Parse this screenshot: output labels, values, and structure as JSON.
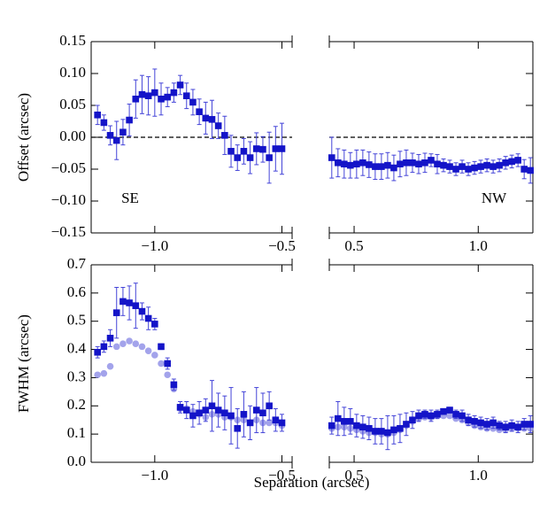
{
  "chart_data": [
    {
      "type": "errorbar",
      "ylabel": "Offset (arcsec)",
      "annotation": "SE",
      "hline": 0,
      "spines": [
        "left",
        "top",
        "bottom"
      ],
      "ytick_labels": true,
      "xlim": [
        -1.25,
        -0.46
      ],
      "ylim": [
        -0.15,
        0.15
      ],
      "xticks": [
        {
          "value": -1.0,
          "label": "−1.0"
        },
        {
          "value": -0.5,
          "label": "−0.5"
        }
      ],
      "yticks": [
        {
          "value": -0.15,
          "label": "−0.15"
        },
        {
          "value": -0.1,
          "label": "−0.10"
        },
        {
          "value": -0.05,
          "label": "−0.05"
        },
        {
          "value": 0,
          "label": "0.00"
        },
        {
          "value": 0.05,
          "label": "0.05"
        },
        {
          "value": 0.1,
          "label": "0.10"
        },
        {
          "value": 0.15,
          "label": "0.15"
        }
      ],
      "x": [
        -1.225,
        -1.2,
        -1.175,
        -1.15,
        -1.125,
        -1.1,
        -1.075,
        -1.05,
        -1.025,
        -1.0,
        -0.975,
        -0.95,
        -0.925,
        -0.9,
        -0.875,
        -0.85,
        -0.825,
        -0.8,
        -0.775,
        -0.75,
        -0.725,
        -0.7,
        -0.675,
        -0.65,
        -0.625,
        -0.6,
        -0.575,
        -0.55,
        -0.525,
        -0.5
      ],
      "series": [
        {
          "color": "#1414c8",
          "marker": "square",
          "values": [
            0.035,
            0.023,
            0.003,
            -0.005,
            0.008,
            0.027,
            0.06,
            0.067,
            0.065,
            0.07,
            0.06,
            0.063,
            0.07,
            0.082,
            0.065,
            0.055,
            0.04,
            0.03,
            0.028,
            0.018,
            0.003,
            -0.022,
            -0.032,
            -0.022,
            -0.032,
            -0.018,
            -0.019,
            -0.032,
            -0.018,
            -0.018
          ],
          "errors": [
            0.015,
            0.012,
            0.015,
            0.03,
            0.02,
            0.025,
            0.03,
            0.03,
            0.03,
            0.037,
            0.025,
            0.015,
            0.015,
            0.015,
            0.02,
            0.02,
            0.02,
            0.025,
            0.03,
            0.02,
            0.03,
            0.025,
            0.02,
            0.02,
            0.025,
            0.025,
            0.02,
            0.04,
            0.035,
            0.04
          ]
        }
      ]
    },
    {
      "type": "errorbar",
      "annotation": "NW",
      "hline": 0,
      "spines": [
        "right",
        "top",
        "bottom"
      ],
      "ytick_labels": false,
      "xlim": [
        0.4,
        1.22
      ],
      "ylim": [
        -0.15,
        0.15
      ],
      "xticks": [
        0.5,
        {
          "value": 1.0,
          "label": "1.0"
        }
      ],
      "yticks": [
        -0.15,
        -0.1,
        -0.05,
        0,
        0.05,
        0.1,
        0.15
      ],
      "x": [
        0.41,
        0.435,
        0.46,
        0.485,
        0.51,
        0.535,
        0.56,
        0.585,
        0.61,
        0.635,
        0.66,
        0.685,
        0.71,
        0.735,
        0.76,
        0.785,
        0.81,
        0.835,
        0.86,
        0.885,
        0.91,
        0.935,
        0.96,
        0.985,
        1.01,
        1.035,
        1.06,
        1.085,
        1.11,
        1.135,
        1.16,
        1.185,
        1.21
      ],
      "series": [
        {
          "color": "#1414c8",
          "marker": "square",
          "values": [
            -0.032,
            -0.04,
            -0.042,
            -0.044,
            -0.042,
            -0.04,
            -0.043,
            -0.046,
            -0.046,
            -0.044,
            -0.048,
            -0.042,
            -0.04,
            -0.04,
            -0.042,
            -0.04,
            -0.036,
            -0.042,
            -0.044,
            -0.046,
            -0.05,
            -0.046,
            -0.05,
            -0.048,
            -0.046,
            -0.044,
            -0.046,
            -0.044,
            -0.04,
            -0.038,
            -0.036,
            -0.05,
            -0.052
          ],
          "errors": [
            0.032,
            0.022,
            0.022,
            0.02,
            0.022,
            0.02,
            0.02,
            0.02,
            0.02,
            0.02,
            0.02,
            0.02,
            0.02,
            0.015,
            0.015,
            0.015,
            0.01,
            0.015,
            0.01,
            0.01,
            0.01,
            0.01,
            0.01,
            0.01,
            0.01,
            0.01,
            0.01,
            0.01,
            0.01,
            0.01,
            0.01,
            0.015,
            0.02
          ]
        }
      ]
    },
    {
      "type": "errorbar",
      "ylabel": "FWHM (arcsec)",
      "xlabel": "Separation (arcsec)",
      "spines": [
        "left",
        "top",
        "bottom"
      ],
      "ytick_labels": true,
      "xlim": [
        -1.25,
        -0.46
      ],
      "ylim": [
        0,
        0.7
      ],
      "xticks": [
        {
          "value": -1.0,
          "label": "−1.0"
        },
        {
          "value": -0.5,
          "label": "−0.5"
        }
      ],
      "yticks": [
        {
          "value": 0,
          "label": "0.0"
        },
        0.1,
        0.2,
        0.3,
        0.4,
        0.5,
        0.6,
        0.7
      ],
      "x": [
        -1.225,
        -1.2,
        -1.175,
        -1.15,
        -1.125,
        -1.1,
        -1.075,
        -1.05,
        -1.025,
        -1.0,
        -0.975,
        -0.95,
        -0.925,
        -0.9,
        -0.875,
        -0.85,
        -0.825,
        -0.8,
        -0.775,
        -0.75,
        -0.725,
        -0.7,
        -0.675,
        -0.65,
        -0.625,
        -0.6,
        -0.575,
        -0.55,
        -0.525,
        -0.5
      ],
      "series": [
        {
          "color": "#8c8ce6",
          "marker": "circle",
          "values": [
            0.31,
            0.315,
            0.34,
            0.41,
            0.42,
            0.43,
            0.42,
            0.41,
            0.395,
            0.38,
            0.35,
            0.31,
            0.26,
            0.19,
            0.19,
            0.18,
            0.17,
            0.16,
            0.17,
            0.17,
            0.16,
            0.16,
            0.15,
            0.15,
            0.14,
            0.15,
            0.14,
            0.14,
            0.14,
            0.13
          ]
        },
        {
          "color": "#1414c8",
          "marker": "square",
          "values": [
            0.39,
            0.41,
            0.44,
            0.53,
            0.57,
            0.565,
            0.555,
            0.535,
            0.51,
            0.49,
            0.41,
            0.35,
            0.275,
            0.195,
            0.185,
            0.165,
            0.175,
            0.185,
            0.2,
            0.185,
            0.175,
            0.165,
            0.12,
            0.17,
            0.14,
            0.185,
            0.175,
            0.2,
            0.15,
            0.14
          ],
          "errors": [
            0.02,
            0.02,
            0.03,
            0.09,
            0.05,
            0.06,
            0.08,
            0.03,
            0.04,
            0.02,
            0.01,
            0.02,
            0.02,
            0.02,
            0.03,
            0.04,
            0.04,
            0.04,
            0.09,
            0.06,
            0.06,
            0.1,
            0.07,
            0.08,
            0.06,
            0.08,
            0.07,
            0.05,
            0.04,
            0.03
          ]
        }
      ]
    },
    {
      "type": "errorbar",
      "spines": [
        "right",
        "top",
        "bottom"
      ],
      "ytick_labels": false,
      "xlim": [
        0.4,
        1.22
      ],
      "ylim": [
        0,
        0.7
      ],
      "xticks": [
        0.5,
        {
          "value": 1.0,
          "label": "1.0"
        }
      ],
      "yticks": [
        0,
        0.1,
        0.2,
        0.3,
        0.4,
        0.5,
        0.6,
        0.7
      ],
      "x": [
        0.41,
        0.435,
        0.46,
        0.485,
        0.51,
        0.535,
        0.56,
        0.585,
        0.61,
        0.635,
        0.66,
        0.685,
        0.71,
        0.735,
        0.76,
        0.785,
        0.81,
        0.835,
        0.86,
        0.885,
        0.91,
        0.935,
        0.96,
        0.985,
        1.01,
        1.035,
        1.06,
        1.085,
        1.11,
        1.135,
        1.16,
        1.185,
        1.21
      ],
      "series": [
        {
          "color": "#8c8ce6",
          "marker": "circle",
          "values": [
            0.12,
            0.125,
            0.125,
            0.12,
            0.115,
            0.11,
            0.105,
            0.105,
            0.1,
            0.1,
            0.105,
            0.115,
            0.13,
            0.145,
            0.155,
            0.16,
            0.16,
            0.165,
            0.165,
            0.165,
            0.155,
            0.15,
            0.14,
            0.13,
            0.125,
            0.12,
            0.12,
            0.115,
            0.115,
            0.12,
            0.12,
            0.12,
            0.12
          ]
        },
        {
          "color": "#1414c8",
          "marker": "square",
          "values": [
            0.13,
            0.155,
            0.145,
            0.145,
            0.13,
            0.125,
            0.12,
            0.11,
            0.11,
            0.105,
            0.115,
            0.12,
            0.135,
            0.15,
            0.165,
            0.17,
            0.165,
            0.17,
            0.18,
            0.185,
            0.17,
            0.165,
            0.15,
            0.145,
            0.14,
            0.135,
            0.14,
            0.13,
            0.125,
            0.13,
            0.125,
            0.135,
            0.135
          ],
          "errors": [
            0.03,
            0.06,
            0.05,
            0.045,
            0.04,
            0.04,
            0.04,
            0.045,
            0.045,
            0.06,
            0.05,
            0.05,
            0.04,
            0.03,
            0.02,
            0.015,
            0.02,
            0.015,
            0.01,
            0.01,
            0.015,
            0.02,
            0.02,
            0.02,
            0.02,
            0.02,
            0.02,
            0.015,
            0.02,
            0.02,
            0.02,
            0.02,
            0.03
          ]
        }
      ]
    }
  ]
}
